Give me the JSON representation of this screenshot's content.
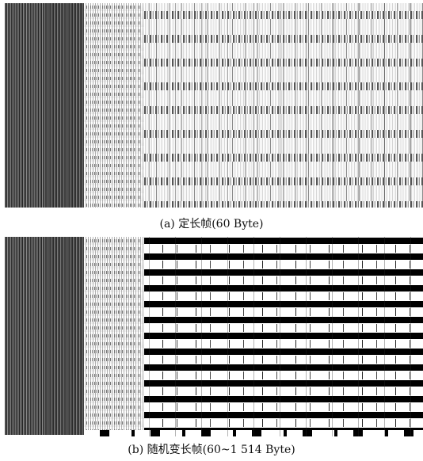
{
  "figure": {
    "panel_a": {
      "caption": "(a) 定长帧(60 Byte)"
    },
    "panel_b": {
      "caption": "(b) 随机变长帧(60~1 514 Byte)"
    }
  }
}
